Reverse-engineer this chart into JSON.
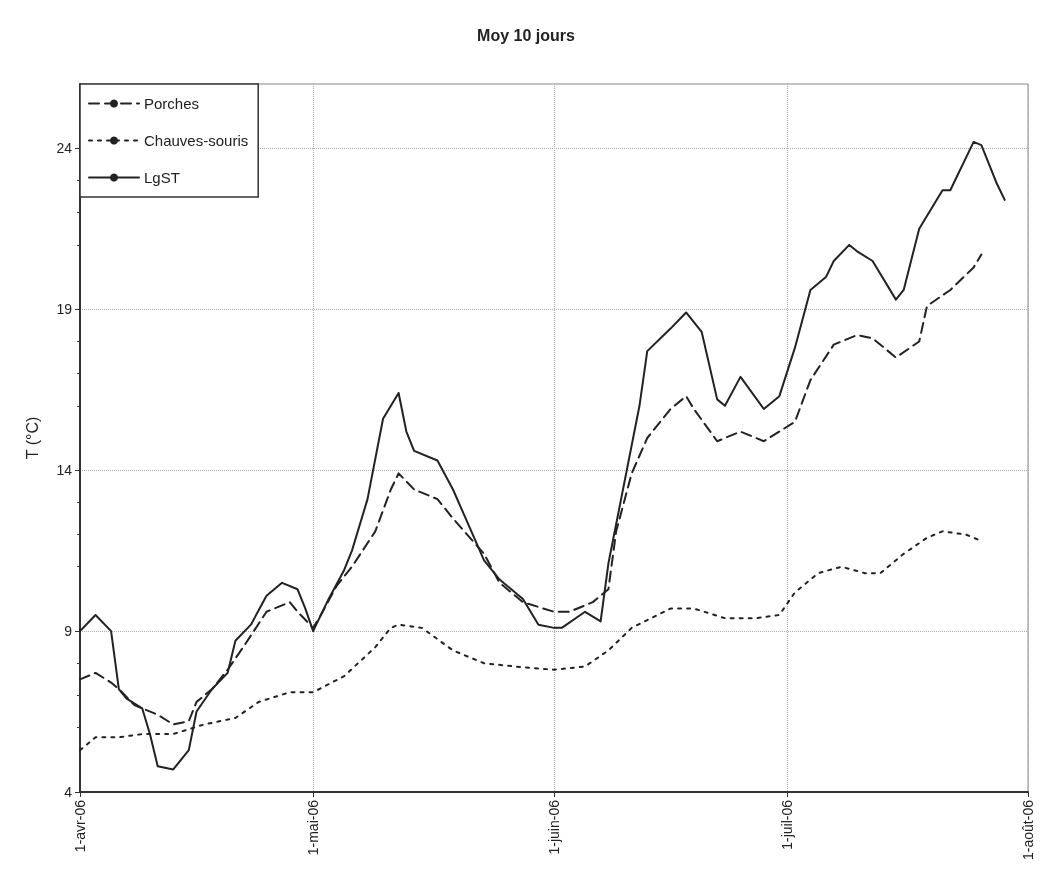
{
  "chart_data": {
    "type": "line",
    "title": "Moy 10 jours",
    "ylabel": "T (°C)",
    "ylim": [
      4,
      26
    ],
    "yticks": [
      4,
      9,
      14,
      19,
      24
    ],
    "xlim": [
      "2006-04-01",
      "2006-08-01"
    ],
    "xticks": [
      {
        "value": "2006-04-01",
        "label": "1-avr-06"
      },
      {
        "value": "2006-05-01",
        "label": "1-mai-06"
      },
      {
        "value": "2006-06-01",
        "label": "1-juin-06"
      },
      {
        "value": "2006-07-01",
        "label": "1-juil-06"
      },
      {
        "value": "2006-08-01",
        "label": "1-août-06"
      }
    ],
    "grid": true,
    "legend": "top left",
    "marker": "none",
    "series": [
      {
        "name": "Porches",
        "color": "#222222",
        "line_style": "dashed",
        "x": [
          "2006-04-01",
          "2006-04-03",
          "2006-04-05",
          "2006-04-06",
          "2006-04-08",
          "2006-04-11",
          "2006-04-13",
          "2006-04-15",
          "2006-04-16",
          "2006-04-18",
          "2006-04-20",
          "2006-04-22",
          "2006-04-25",
          "2006-04-28",
          "2006-04-29",
          "2006-05-01",
          "2006-05-02",
          "2006-05-04",
          "2006-05-06",
          "2006-05-09",
          "2006-05-11",
          "2006-05-12",
          "2006-05-14",
          "2006-05-17",
          "2006-05-19",
          "2006-05-23",
          "2006-05-25",
          "2006-05-28",
          "2006-06-01",
          "2006-06-03",
          "2006-06-06",
          "2006-06-08",
          "2006-06-09",
          "2006-06-11",
          "2006-06-13",
          "2006-06-16",
          "2006-06-18",
          "2006-06-19",
          "2006-06-22",
          "2006-06-25",
          "2006-06-28",
          "2006-07-02",
          "2006-07-04",
          "2006-07-07",
          "2006-07-10",
          "2006-07-12",
          "2006-07-15",
          "2006-07-18",
          "2006-07-19",
          "2006-07-22",
          "2006-07-25",
          "2006-07-26"
        ],
        "values": [
          7.5,
          7.7,
          7.4,
          7.2,
          6.7,
          6.4,
          6.1,
          6.2,
          6.8,
          7.2,
          7.8,
          8.5,
          9.6,
          9.9,
          9.6,
          9.1,
          9.5,
          10.4,
          11.0,
          12.1,
          13.4,
          13.9,
          13.4,
          13.1,
          12.5,
          11.4,
          10.5,
          9.9,
          9.6,
          9.6,
          9.9,
          10.3,
          12.1,
          13.9,
          15.0,
          15.9,
          16.3,
          15.9,
          14.9,
          15.2,
          14.9,
          15.5,
          16.8,
          17.9,
          18.2,
          18.1,
          17.5,
          18.0,
          19.1,
          19.6,
          20.3,
          20.7
        ]
      },
      {
        "name": "Chauves-souris",
        "color": "#222222",
        "line_style": "dotted",
        "x": [
          "2006-04-01",
          "2006-04-03",
          "2006-04-06",
          "2006-04-09",
          "2006-04-13",
          "2006-04-17",
          "2006-04-21",
          "2006-04-24",
          "2006-04-28",
          "2006-05-01",
          "2006-05-05",
          "2006-05-09",
          "2006-05-11",
          "2006-05-12",
          "2006-05-15",
          "2006-05-19",
          "2006-05-23",
          "2006-05-27",
          "2006-06-01",
          "2006-06-05",
          "2006-06-08",
          "2006-06-11",
          "2006-06-16",
          "2006-06-19",
          "2006-06-23",
          "2006-06-27",
          "2006-06-30",
          "2006-07-02",
          "2006-07-05",
          "2006-07-08",
          "2006-07-11",
          "2006-07-13",
          "2006-07-16",
          "2006-07-19",
          "2006-07-21",
          "2006-07-24",
          "2006-07-26"
        ],
        "values": [
          5.3,
          5.7,
          5.7,
          5.8,
          5.8,
          6.1,
          6.3,
          6.8,
          7.1,
          7.1,
          7.6,
          8.5,
          9.1,
          9.2,
          9.1,
          8.4,
          8.0,
          7.9,
          7.8,
          7.9,
          8.4,
          9.1,
          9.7,
          9.7,
          9.4,
          9.4,
          9.5,
          10.2,
          10.8,
          11.0,
          10.8,
          10.8,
          11.4,
          11.9,
          12.1,
          12.0,
          11.8
        ]
      },
      {
        "name": "LgST",
        "color": "#222222",
        "line_style": "solid",
        "x": [
          "2006-04-01",
          "2006-04-03",
          "2006-04-05",
          "2006-04-06",
          "2006-04-07",
          "2006-04-09",
          "2006-04-10",
          "2006-04-11",
          "2006-04-13",
          "2006-04-15",
          "2006-04-16",
          "2006-04-18",
          "2006-04-20",
          "2006-04-21",
          "2006-04-23",
          "2006-04-25",
          "2006-04-27",
          "2006-04-29",
          "2006-04-30",
          "2006-05-01",
          "2006-05-03",
          "2006-05-05",
          "2006-05-06",
          "2006-05-08",
          "2006-05-10",
          "2006-05-12",
          "2006-05-13",
          "2006-05-14",
          "2006-05-17",
          "2006-05-19",
          "2006-05-21",
          "2006-05-23",
          "2006-05-25",
          "2006-05-28",
          "2006-05-30",
          "2006-06-01",
          "2006-06-02",
          "2006-06-05",
          "2006-06-07",
          "2006-06-08",
          "2006-06-12",
          "2006-06-13",
          "2006-06-16",
          "2006-06-18",
          "2006-06-20",
          "2006-06-22",
          "2006-06-23",
          "2006-06-25",
          "2006-06-28",
          "2006-06-30",
          "2006-07-02",
          "2006-07-04",
          "2006-07-06",
          "2006-07-07",
          "2006-07-09",
          "2006-07-10",
          "2006-07-12",
          "2006-07-15",
          "2006-07-16",
          "2006-07-18",
          "2006-07-21",
          "2006-07-22",
          "2006-07-25",
          "2006-07-26",
          "2006-07-28",
          "2006-07-29"
        ],
        "values": [
          9.0,
          9.5,
          9.0,
          7.2,
          6.9,
          6.6,
          5.8,
          4.8,
          4.7,
          5.3,
          6.5,
          7.2,
          7.7,
          8.7,
          9.2,
          10.1,
          10.5,
          10.3,
          9.7,
          9.0,
          10.0,
          10.9,
          11.5,
          13.1,
          15.6,
          16.4,
          15.2,
          14.6,
          14.3,
          13.4,
          12.3,
          11.2,
          10.6,
          10.0,
          9.2,
          9.1,
          9.1,
          9.6,
          9.3,
          11.1,
          16.0,
          17.7,
          18.4,
          18.9,
          18.3,
          16.2,
          16.0,
          16.9,
          15.9,
          16.3,
          17.8,
          19.6,
          20.0,
          20.5,
          21.0,
          20.8,
          20.5,
          19.3,
          19.6,
          21.5,
          22.7,
          22.7,
          24.2,
          24.1,
          22.9,
          22.4
        ]
      }
    ]
  }
}
